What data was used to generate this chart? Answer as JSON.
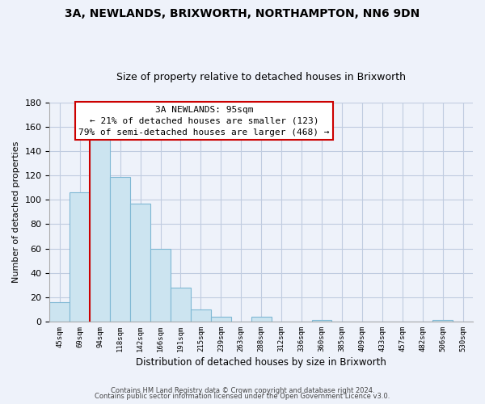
{
  "title": "3A, NEWLANDS, BRIXWORTH, NORTHAMPTON, NN6 9DN",
  "subtitle": "Size of property relative to detached houses in Brixworth",
  "xlabel": "Distribution of detached houses by size in Brixworth",
  "ylabel": "Number of detached properties",
  "bin_labels": [
    "45sqm",
    "69sqm",
    "94sqm",
    "118sqm",
    "142sqm",
    "166sqm",
    "191sqm",
    "215sqm",
    "239sqm",
    "263sqm",
    "288sqm",
    "312sqm",
    "336sqm",
    "360sqm",
    "385sqm",
    "409sqm",
    "433sqm",
    "457sqm",
    "482sqm",
    "506sqm",
    "530sqm"
  ],
  "bar_values": [
    16,
    106,
    150,
    119,
    97,
    60,
    28,
    10,
    4,
    0,
    4,
    0,
    0,
    1,
    0,
    0,
    0,
    0,
    0,
    1,
    0
  ],
  "bar_color": "#cce4f0",
  "bar_edge_color": "#7fb8d4",
  "highlight_line_x_label": "94sqm",
  "highlight_line_color": "#cc0000",
  "ylim": [
    0,
    180
  ],
  "yticks": [
    0,
    20,
    40,
    60,
    80,
    100,
    120,
    140,
    160,
    180
  ],
  "annotation_text": "3A NEWLANDS: 95sqm\n← 21% of detached houses are smaller (123)\n79% of semi-detached houses are larger (468) →",
  "annotation_box_color": "#ffffff",
  "annotation_box_edge": "#cc0000",
  "footer_line1": "Contains HM Land Registry data © Crown copyright and database right 2024.",
  "footer_line2": "Contains public sector information licensed under the Open Government Licence v3.0.",
  "background_color": "#eef2fa",
  "plot_bg_color": "#eef2fa",
  "grid_color": "#c0cce0",
  "title_fontsize": 10,
  "subtitle_fontsize": 9
}
